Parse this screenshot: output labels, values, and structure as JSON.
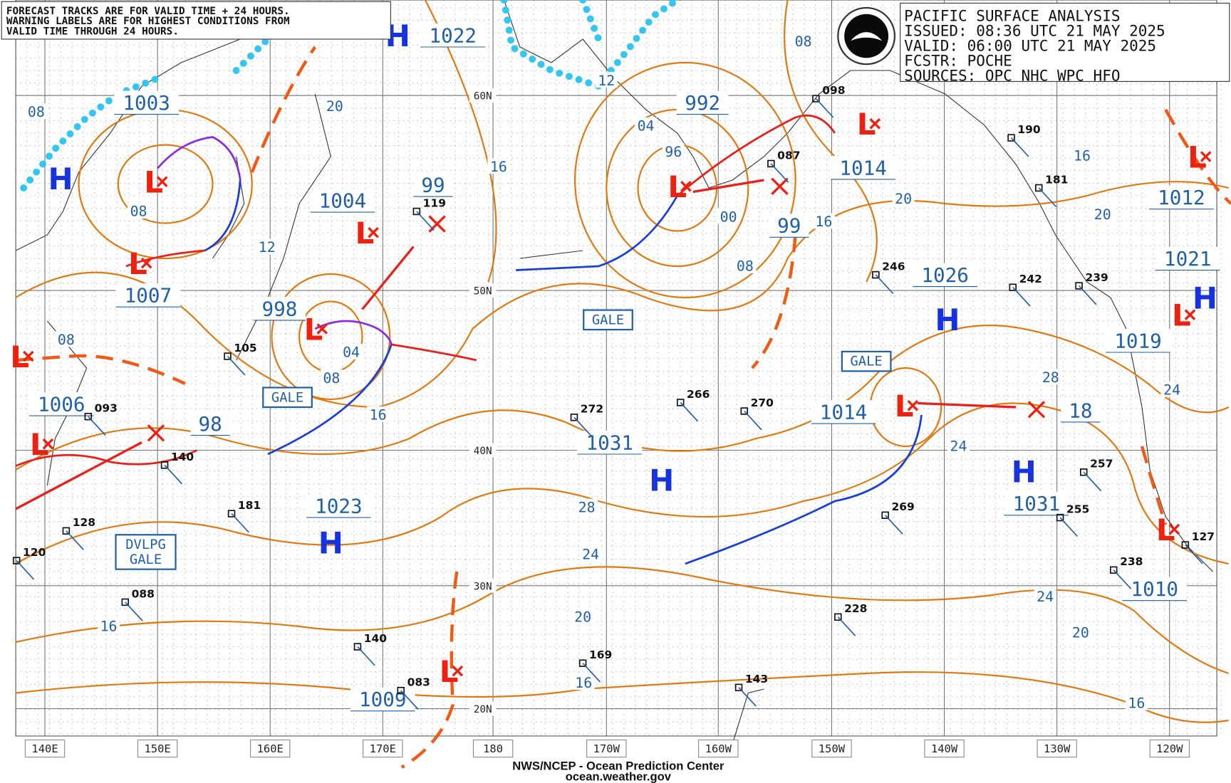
{
  "notice": [
    "FORECAST TRACKS ARE FOR VALID TIME + 24 HOURS.",
    "WARNING LABELS ARE FOR HIGHEST CONDITIONS FROM",
    "VALID TIME THROUGH 24 HOURS."
  ],
  "header": [
    "PACIFIC SURFACE ANALYSIS",
    "ISSUED: 08:36 UTC 21 MAY 2025",
    "VALID:  06:00 UTC 21 MAY 2025",
    "FCSTR:  POCHE",
    "SOURCES: OPC NHC WPC HFO"
  ],
  "lat_labels": [
    "60N",
    "50N",
    "40N",
    "30N",
    "20N"
  ],
  "lon_labels": [
    "140E",
    "150E",
    "160E",
    "170E",
    "180",
    "170W",
    "160W",
    "150W",
    "140W",
    "130W",
    "120W"
  ],
  "pressure_centers": [
    "1022",
    "1003",
    "1004",
    "99",
    "992",
    "1014",
    "99",
    "1012",
    "1021",
    "1007",
    "998",
    "1026",
    "1019",
    "1006",
    "98",
    "1014",
    "18",
    "1031",
    "1031",
    "1023",
    "1010",
    "1009"
  ],
  "isobar_labels": [
    "08",
    "20",
    "12",
    "08",
    "16",
    "04",
    "96",
    "00",
    "08",
    "12",
    "08",
    "16",
    "20",
    "16",
    "20",
    "08",
    "04",
    "08",
    "16",
    "28",
    "24",
    "24",
    "28",
    "24",
    "20",
    "24",
    "20",
    "16",
    "16",
    "16"
  ],
  "high_symbol": "H",
  "low_symbol": "L",
  "warnings": [
    "GALE",
    "GALE",
    "GALE"
  ],
  "developing_warning": [
    "DVLPG",
    "GALE"
  ],
  "stations": [
    "105",
    "093",
    "140",
    "181",
    "128",
    "120",
    "088",
    "140",
    "083",
    "119",
    "272",
    "266",
    "270",
    "169",
    "143",
    "228",
    "269",
    "246",
    "242",
    "239",
    "190",
    "181",
    "255",
    "257",
    "238",
    "127",
    "098",
    "087"
  ],
  "footer": [
    "NWS/NCEP - Ocean Prediction Center",
    "ocean.weather.gov"
  ]
}
